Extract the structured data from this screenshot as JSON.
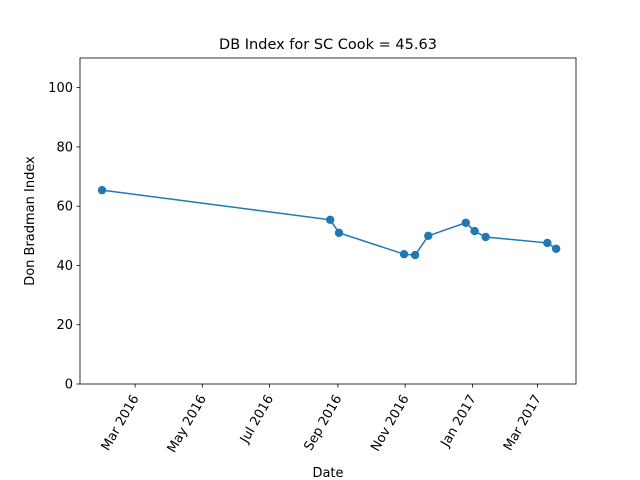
{
  "chart_data": {
    "type": "line",
    "title": "DB Index for SC Cook = 45.63",
    "xlabel": "Date",
    "ylabel": "Don Bradman Index",
    "ylim": [
      0,
      110
    ],
    "xlim": [
      "2016-01-11",
      "2017-04-05"
    ],
    "yticks": [
      0,
      20,
      40,
      60,
      80,
      100
    ],
    "xticks": [
      {
        "date": "2016-03-01",
        "label": "Mar 2016"
      },
      {
        "date": "2016-05-01",
        "label": "May 2016"
      },
      {
        "date": "2016-07-01",
        "label": "Jul 2016"
      },
      {
        "date": "2016-09-01",
        "label": "Sep 2016"
      },
      {
        "date": "2016-11-01",
        "label": "Nov 2016"
      },
      {
        "date": "2017-01-01",
        "label": "Jan 2017"
      },
      {
        "date": "2017-03-01",
        "label": "Mar 2017"
      }
    ],
    "grid": false,
    "series": [
      {
        "color": "#1f77b4",
        "marker": "circle",
        "x": [
          "2016-01-31",
          "2016-08-25",
          "2016-08-33",
          "2016-10-31",
          "2016-11-10",
          "2016-11-22",
          "2016-12-26",
          "2017-01-03",
          "2017-01-13",
          "2017-03-10",
          "2017-03-18"
        ],
        "y": [
          65.4,
          55.4,
          51.0,
          43.8,
          43.5,
          50.0,
          54.4,
          51.6,
          49.6,
          47.6,
          45.63
        ]
      }
    ]
  }
}
